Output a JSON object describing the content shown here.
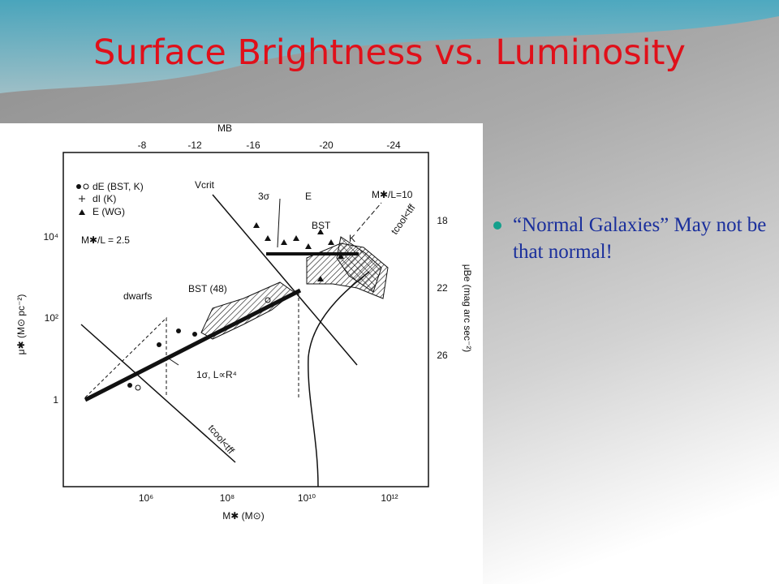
{
  "title": "Surface Brightness vs. Luminosity",
  "bullets": [
    "“Normal Galaxies” May not be that normal!"
  ],
  "figure": {
    "top_axis": {
      "label": "MB",
      "ticks": [
        "-8",
        "-12",
        "-16",
        "-20",
        "-24"
      ]
    },
    "bottom_axis": {
      "label": "M✱ (M⊙)",
      "ticks": [
        "10⁶",
        "10⁸",
        "10¹⁰",
        "10¹²"
      ]
    },
    "left_axis": {
      "label": "μ✱ (M⊙ pc⁻²)",
      "ticks": [
        "10⁴",
        "10²",
        "1"
      ]
    },
    "right_axis": {
      "label": "μBe (mag arc sec⁻²)",
      "ticks": [
        "18",
        "22",
        "26"
      ]
    },
    "legend": [
      "dE (BST, K)",
      "dI (K)",
      "E (WG)",
      "M✱/L = 2.5"
    ],
    "annotations": {
      "vcrit": "Vcrit",
      "three_sigma": "3σ",
      "e": "E",
      "bst": "BST",
      "k": "K",
      "bst48": "BST (48)",
      "dwarfs": "dwarfs",
      "one_sigma": "1σ,  L∝R⁴",
      "ml10": "M✱/L=10",
      "tcool_upper": "tcool<tff",
      "tcool_lower": "tcool<tff"
    }
  }
}
